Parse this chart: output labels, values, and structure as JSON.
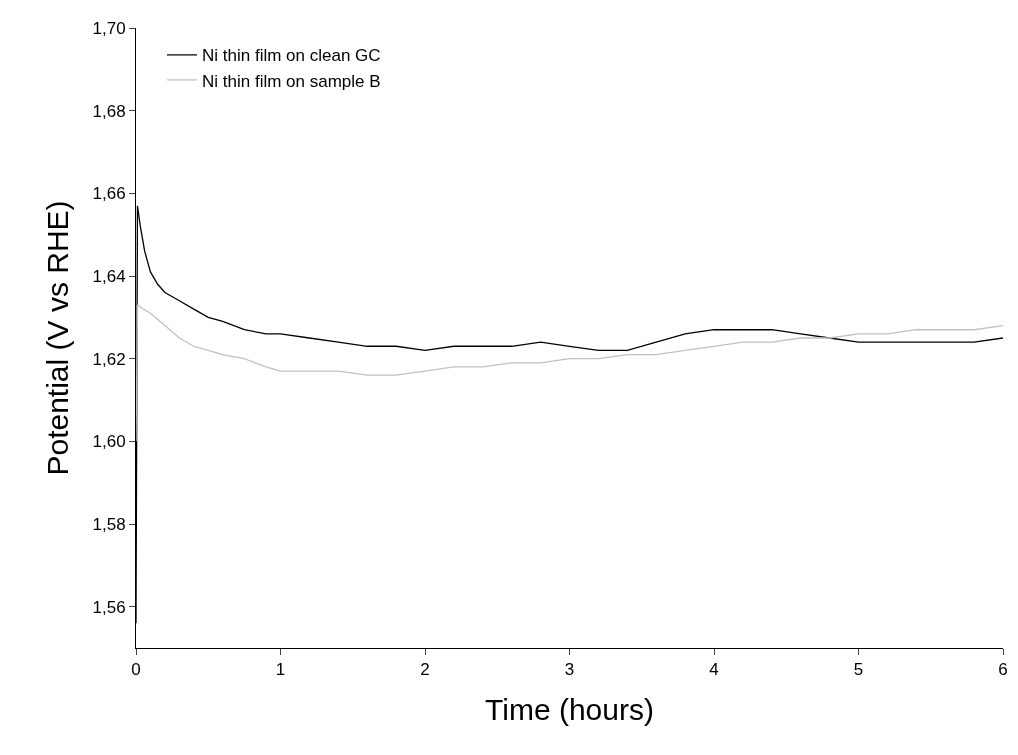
{
  "chart_data": {
    "type": "line",
    "xlabel": "Time (hours)",
    "ylabel": "Potential (V vs RHE)",
    "xlim": [
      0,
      6
    ],
    "xticks": [
      0,
      1,
      2,
      3,
      4,
      5,
      6
    ],
    "ylim": [
      1.55,
      1.7
    ],
    "yticks": [
      {
        "value": 1.56,
        "label": "1,56"
      },
      {
        "value": 1.58,
        "label": "1,58"
      },
      {
        "value": 1.6,
        "label": "1,60"
      },
      {
        "value": 1.62,
        "label": "1,62"
      },
      {
        "value": 1.64,
        "label": "1,64"
      },
      {
        "value": 1.66,
        "label": "1,66"
      },
      {
        "value": 1.68,
        "label": "1,68"
      },
      {
        "value": 1.7,
        "label": "1,70"
      }
    ],
    "legend": "top left",
    "marker": "none",
    "line_style": "solid",
    "series": [
      {
        "name": "Ni thin film on clean GC",
        "color": "#000000",
        "x": [
          0,
          0.01,
          0.03,
          0.06,
          0.1,
          0.15,
          0.2,
          0.3,
          0.4,
          0.5,
          0.6,
          0.75,
          0.9,
          1.0,
          1.2,
          1.4,
          1.6,
          1.8,
          2.0,
          2.2,
          2.4,
          2.6,
          2.8,
          3.0,
          3.2,
          3.4,
          3.6,
          3.8,
          4.0,
          4.2,
          4.4,
          4.6,
          4.8,
          5.0,
          5.2,
          5.4,
          5.6,
          5.8,
          6.0
        ],
        "values": [
          1.556,
          1.657,
          1.652,
          1.646,
          1.641,
          1.638,
          1.636,
          1.634,
          1.632,
          1.63,
          1.629,
          1.627,
          1.626,
          1.626,
          1.625,
          1.624,
          1.623,
          1.623,
          1.622,
          1.623,
          1.623,
          1.623,
          1.624,
          1.623,
          1.622,
          1.622,
          1.624,
          1.626,
          1.627,
          1.627,
          1.627,
          1.626,
          1.625,
          1.624,
          1.624,
          1.624,
          1.624,
          1.624,
          1.625
        ]
      },
      {
        "name": "Ni thin film on sample B",
        "color": "#c0c0c0",
        "x": [
          0,
          0.01,
          0.05,
          0.1,
          0.2,
          0.3,
          0.4,
          0.5,
          0.6,
          0.75,
          0.9,
          1.0,
          1.2,
          1.4,
          1.6,
          1.8,
          2.0,
          2.2,
          2.4,
          2.6,
          2.8,
          3.0,
          3.2,
          3.4,
          3.6,
          3.8,
          4.0,
          4.2,
          4.4,
          4.6,
          4.8,
          5.0,
          5.2,
          5.4,
          5.6,
          5.8,
          6.0
        ],
        "values": [
          1.6,
          1.633,
          1.632,
          1.631,
          1.628,
          1.625,
          1.623,
          1.622,
          1.621,
          1.62,
          1.618,
          1.617,
          1.617,
          1.617,
          1.616,
          1.616,
          1.617,
          1.618,
          1.618,
          1.619,
          1.619,
          1.62,
          1.62,
          1.621,
          1.621,
          1.622,
          1.623,
          1.624,
          1.624,
          1.625,
          1.625,
          1.626,
          1.626,
          1.627,
          1.627,
          1.627,
          1.628
        ]
      }
    ]
  }
}
